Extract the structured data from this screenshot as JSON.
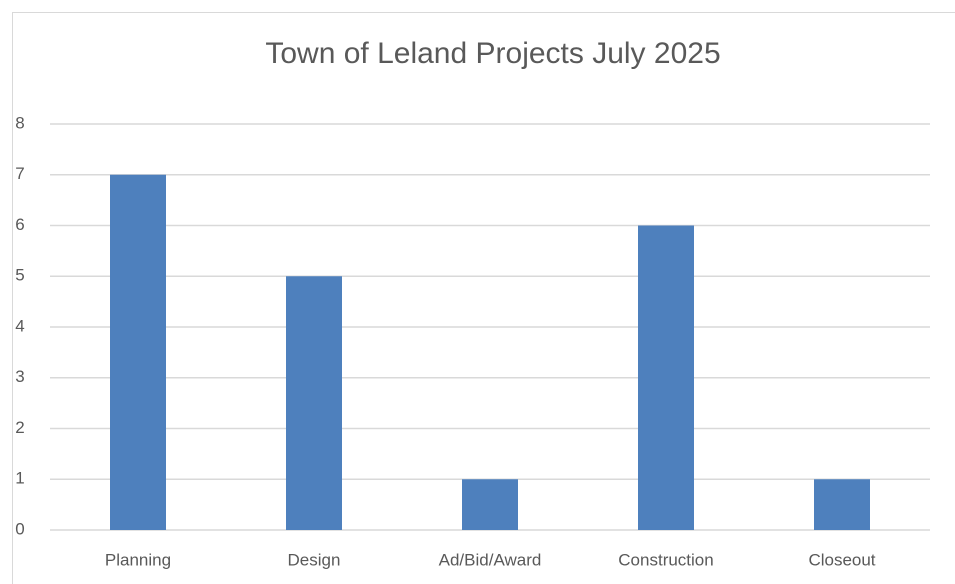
{
  "chart_data": {
    "type": "bar",
    "title": "Town of Leland Projects July 2025",
    "categories": [
      "Planning",
      "Design",
      "Ad/Bid/Award",
      "Construction",
      "Closeout"
    ],
    "values": [
      7,
      5,
      1,
      6,
      1
    ],
    "color": "#4e80bd",
    "ylim": [
      0,
      8
    ],
    "yticks": [
      0,
      1,
      2,
      3,
      4,
      5,
      6,
      7,
      8
    ],
    "grid": true
  }
}
